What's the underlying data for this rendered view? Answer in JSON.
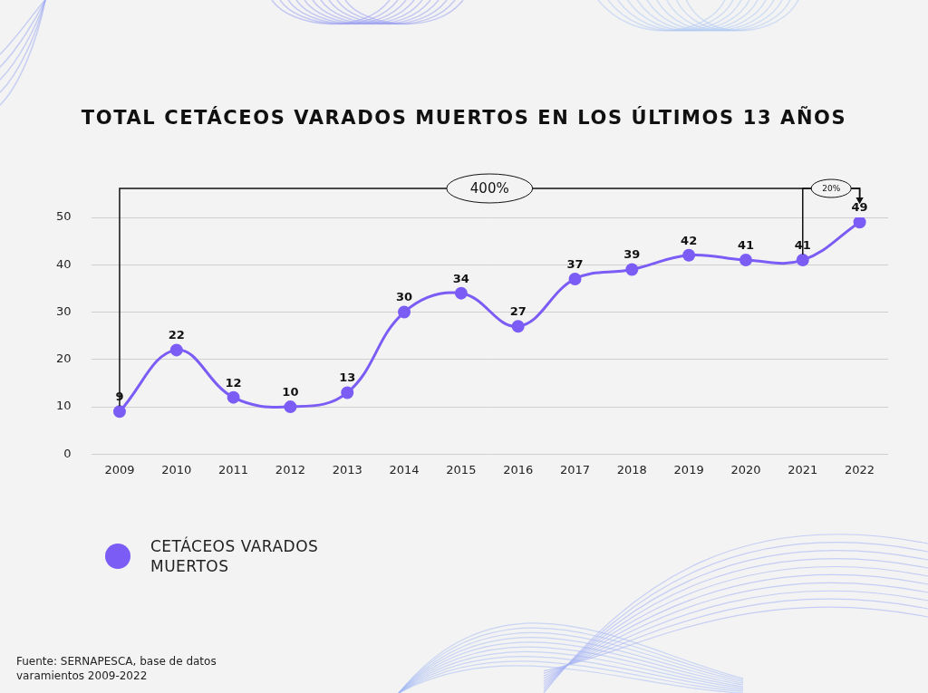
{
  "chart_data": {
    "type": "line",
    "title": "TOTAL CETÁCEOS VARADOS MUERTOS EN LOS ÚLTIMOS 13 AÑOS",
    "categories": [
      "2009",
      "2010",
      "2011",
      "2012",
      "2013",
      "2014",
      "2015",
      "2016",
      "2017",
      "2018",
      "2019",
      "2020",
      "2021",
      "2022"
    ],
    "series": [
      {
        "name": "CETÁCEOS VARADOS MUERTOS",
        "color": "#7b5cf5",
        "marker": "circle",
        "values": [
          9,
          22,
          12,
          10,
          13,
          30,
          34,
          27,
          37,
          39,
          42,
          41,
          41,
          49
        ]
      }
    ],
    "ylim": [
      0,
      50
    ],
    "yticks": [
      0,
      10,
      20,
      30,
      40,
      50
    ],
    "grid": true,
    "legend": "bottom-left",
    "data_labels": true,
    "annotations": [
      {
        "text": "400%",
        "from": "2009",
        "to": "2022"
      },
      {
        "text": "20%",
        "from": "2021",
        "to": "2022"
      }
    ],
    "source": "Fuente: SERNAPESCA, base de datos varamientos 2009-2022"
  }
}
